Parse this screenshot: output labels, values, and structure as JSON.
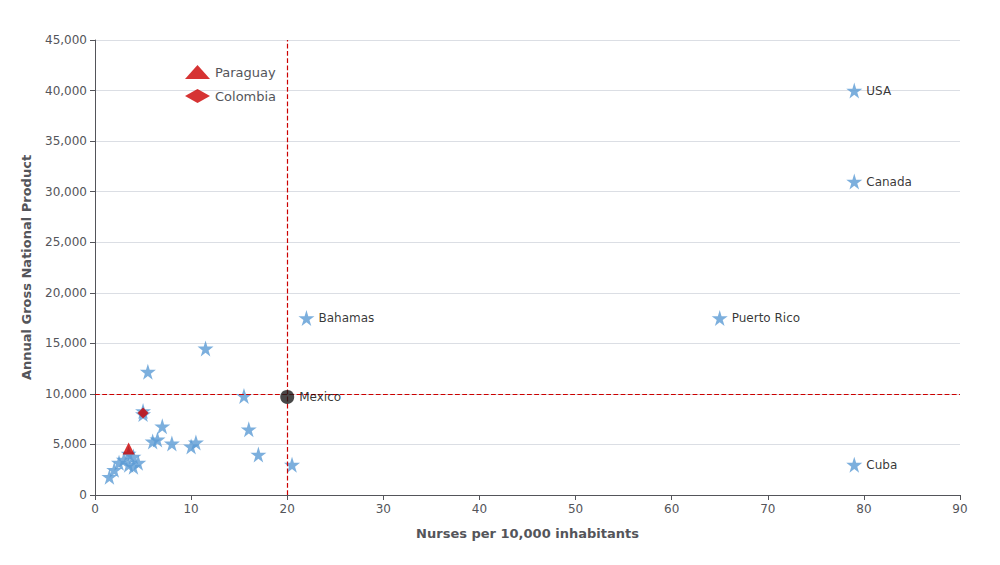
{
  "chart_data": {
    "type": "scatter",
    "xlabel": "Nurses per 10,000 inhabitants",
    "ylabel": "Annual Gross National Product",
    "xlim": [
      0,
      90
    ],
    "ylim": [
      0,
      45000
    ],
    "xticks": [
      0,
      10,
      20,
      30,
      40,
      50,
      60,
      70,
      80,
      90
    ],
    "yticks": [
      0,
      {
        "value": 5000,
        "label": "5,000"
      },
      {
        "value": 10000,
        "label": "10,000"
      },
      {
        "value": 15000,
        "label": "15,000"
      },
      {
        "value": 20000,
        "label": "20,000"
      },
      {
        "value": 25000,
        "label": "25,000"
      },
      {
        "value": 30000,
        "label": "30,000"
      },
      {
        "value": 35000,
        "label": "35,000"
      },
      {
        "value": 40000,
        "label": "40,000"
      },
      {
        "value": 45000,
        "label": "45,000"
      }
    ],
    "grid": true,
    "legend": "upper left",
    "series": [
      {
        "color": "#5b9bd5",
        "marker": "star",
        "x": [
          1.5,
          2.0,
          2.5,
          3.0,
          3.5,
          3.5,
          4.0,
          4.0,
          4.5,
          5.0,
          5.0,
          5.5,
          6.0,
          6.5,
          7.0,
          8.0,
          10.0,
          10.5,
          11.5,
          15.5,
          16.0,
          17.0,
          20.5,
          22.0,
          65.0,
          79.0,
          79.0,
          79.0
        ],
        "values": [
          1800,
          2500,
          3200,
          3500,
          3000,
          4100,
          2800,
          3800,
          3200,
          8000,
          8300,
          12200,
          5300,
          5500,
          6800,
          5100,
          4800,
          5200,
          14500,
          9800,
          6500,
          4000,
          3000,
          17500,
          17500,
          40000,
          31000,
          3000
        ]
      },
      {
        "name": "Paraguay",
        "color": "#cc0000",
        "marker": "triangle",
        "x": [
          3.5
        ],
        "values": [
          4600
        ]
      },
      {
        "name": "Colombia",
        "color": "#cc0000",
        "marker": "diamond",
        "x": [
          5.0
        ],
        "values": [
          8100
        ]
      },
      {
        "color": "#1a1a1a",
        "marker": "circle",
        "x": [
          20.0
        ],
        "values": [
          9700
        ]
      }
    ],
    "reference_lines": [
      {
        "axis": "x",
        "value": 20,
        "color": "#cc0000",
        "line_style": "dashed"
      },
      {
        "axis": "y",
        "value": 10000,
        "color": "#cc0000",
        "line_style": "dashed"
      }
    ],
    "annotations": [
      {
        "text": "Bahamas",
        "x": 22.0,
        "y": 17500
      },
      {
        "text": "Puerto Rico",
        "x": 65.0,
        "y": 17500
      },
      {
        "text": "USA",
        "x": 79.0,
        "y": 40000
      },
      {
        "text": "Canada",
        "x": 79.0,
        "y": 31000
      },
      {
        "text": "Cuba",
        "x": 79.0,
        "y": 3000
      },
      {
        "text": "Mexico",
        "x": 20.0,
        "y": 9700
      }
    ]
  }
}
